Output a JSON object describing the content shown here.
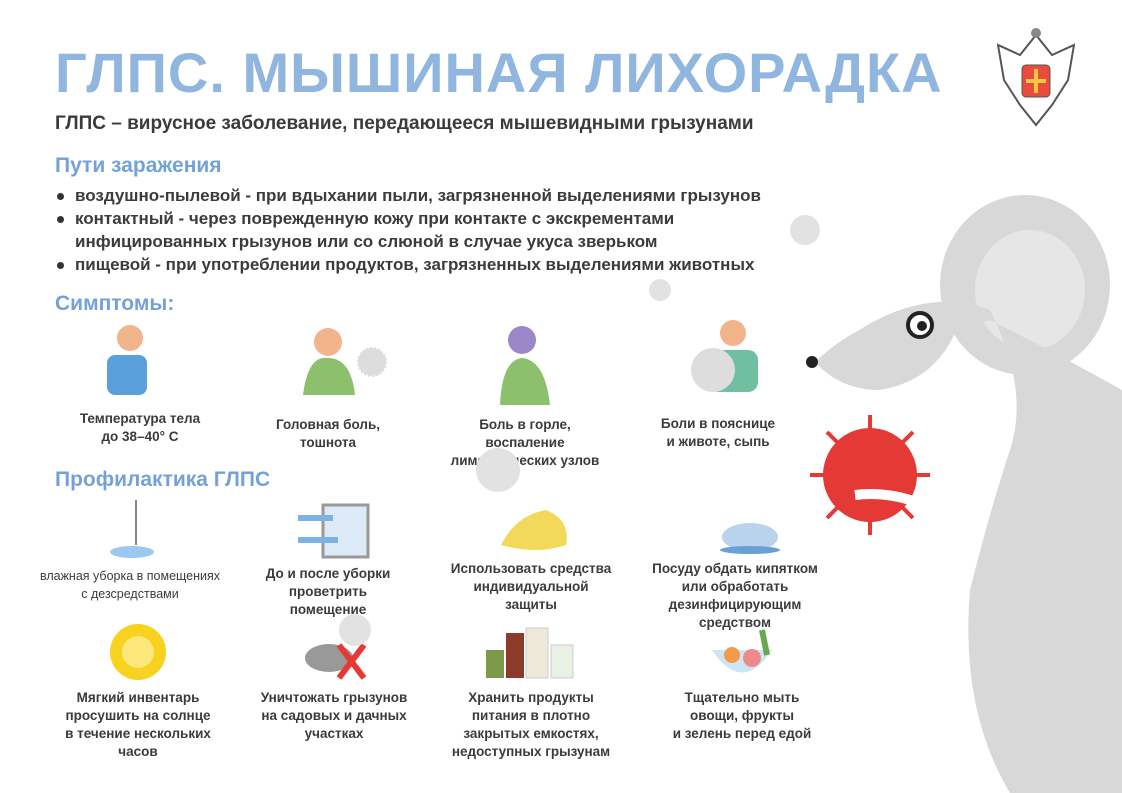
{
  "title": "ГЛПС. МЫШИНАЯ ЛИХОРАДКА",
  "subtitle": "ГЛПС – вирусное заболевание, передающееся мышевидными грызунами",
  "routes": {
    "heading": "Пути заражения",
    "items": [
      "воздушно-пылевой - при вдыхании пыли, загрязненной выделениями грызунов",
      "контактный - через поврежденную кожу при контакте с экскрементами инфицированных грызунов или со слюной в случае укуса зверьком",
      "пищевой - при употреблении продуктов, загрязненных выделениями животных"
    ]
  },
  "symptoms": {
    "heading": "Симптомы:",
    "items": [
      {
        "icon": "fever-person-icon",
        "lines": [
          "Температура тела",
          "до 38–40° С"
        ]
      },
      {
        "icon": "headache-person-icon",
        "lines": [
          "Головная боль,",
          "тошнота"
        ]
      },
      {
        "icon": "sore-throat-person-icon",
        "lines": [
          "Боль в горле,",
          "воспаление",
          "лимфатических узлов"
        ]
      },
      {
        "icon": "back-pain-person-icon",
        "lines": [
          "Боли в пояснице",
          "и животе, сыпь"
        ]
      }
    ]
  },
  "prevention": {
    "heading": "Профилактика ГЛПС",
    "items": [
      {
        "icon": "mop-icon",
        "lines": [
          "влажная уборка в помещениях",
          "с дезсредствами"
        ]
      },
      {
        "icon": "window-ventilation-icon",
        "lines": [
          "До и после уборки",
          "проветрить",
          "помещение"
        ]
      },
      {
        "icon": "gloves-icon",
        "lines": [
          "Использовать средства",
          "индивидуальной",
          "защиты"
        ]
      },
      {
        "icon": "kettle-icon",
        "lines": [
          "Посуду обдать кипятком",
          "или обработать",
          "дезинфицирующим",
          "средством"
        ]
      },
      {
        "icon": "sun-icon",
        "lines": [
          "Мягкий инвентарь",
          "просушить на солнце",
          "в течение нескольких",
          "часов"
        ]
      },
      {
        "icon": "crossed-mouse-icon",
        "lines": [
          "Уничтожать грызунов",
          "на садовых и дачных",
          "участках"
        ]
      },
      {
        "icon": "jars-icon",
        "lines": [
          "Хранить продукты",
          "питания в плотно",
          "закрытых емкостях,",
          "недоступных грызунам"
        ]
      },
      {
        "icon": "vegetable-bowl-icon",
        "lines": [
          "Тщательно мыть",
          "овощи, фрукты",
          "и зелень перед едой"
        ]
      }
    ]
  },
  "colors": {
    "title": "#90b5de",
    "heading": "#74a2d8",
    "text": "#3b3b3b",
    "mouse": "#d8d8d8",
    "virus": "#e53935"
  }
}
